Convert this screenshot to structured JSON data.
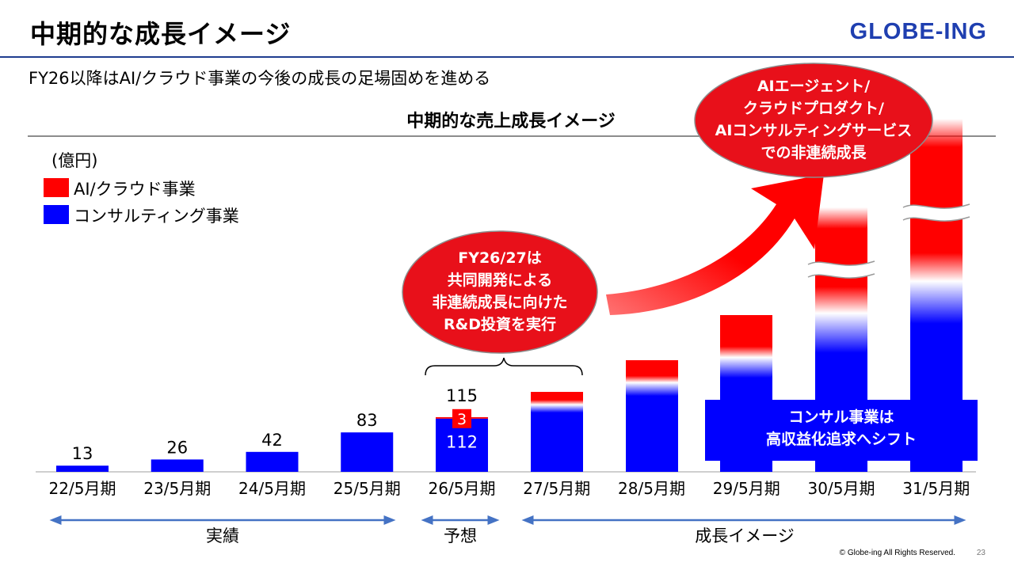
{
  "header": {
    "title": "中期的な成長イメージ",
    "logo": "GLOBE-ING",
    "subtitle": "FY26以降はAI/クラウド事業の今後の成長の足場固めを進める"
  },
  "colors": {
    "ai_cloud": "#ff0000",
    "consulting": "#0000ff",
    "bubble": "#e8101a",
    "arrow": "#4472c4",
    "title_rule": "#1f3d8f"
  },
  "chart_data": {
    "type": "bar",
    "title": "中期的な売上成長イメージ",
    "unit_label": "(億円)",
    "categories": [
      "22/5月期",
      "23/5月期",
      "24/5月期",
      "25/5月期",
      "26/5月期",
      "27/5月期",
      "28/5月期",
      "29/5月期",
      "30/5月期",
      "31/5月期"
    ],
    "series": [
      {
        "name": "AI/クラウド事業",
        "values": [
          null,
          null,
          null,
          null,
          3,
          null,
          null,
          null,
          null,
          null
        ]
      },
      {
        "name": "コンサルティング事業",
        "values": [
          null,
          null,
          null,
          null,
          112,
          null,
          null,
          null,
          null,
          null
        ]
      }
    ],
    "totals": [
      13,
      26,
      42,
      83,
      115,
      null,
      null,
      null,
      null,
      null
    ],
    "single_bar_values": [
      13,
      26,
      42,
      83
    ],
    "image_bars": [
      {
        "category": "27/5月期",
        "approx_total": 140,
        "approx_ai": 10
      },
      {
        "category": "28/5月期",
        "approx_total": 195,
        "approx_ai": 35
      },
      {
        "category": "29/5月期",
        "approx_total": 275,
        "approx_ai": 70
      },
      {
        "category": "30/5月期",
        "approx_total": 460,
        "approx_ai": 270,
        "axis_break": true
      },
      {
        "category": "31/5月期",
        "approx_total": 620,
        "approx_ai": 390,
        "axis_break": true
      }
    ],
    "ylim": [
      0,
      620
    ],
    "grid": false,
    "legend_position": "top-left",
    "periods": [
      {
        "label": "実績",
        "from": "22/5月期",
        "to": "25/5月期"
      },
      {
        "label": "予想",
        "from": "26/5月期",
        "to": "26/5月期"
      },
      {
        "label": "成長イメージ",
        "from": "27/5月期",
        "to": "31/5月期"
      }
    ],
    "annotations": {
      "bubble_rd": [
        "FY26/27は",
        "共同開発による",
        "非連続成長に向けた",
        "R&D投資を実行"
      ],
      "bubble_ai": [
        "AIエージェント/",
        "クラウドプロダクト/",
        "AIコンサルティングサービス",
        "での非連続成長"
      ],
      "consulting_box": [
        "コンサル事業は",
        "高収益化追求へシフト"
      ]
    }
  },
  "footer": {
    "copyright": "© Globe-ing All Rights Reserved.",
    "page": "23"
  }
}
